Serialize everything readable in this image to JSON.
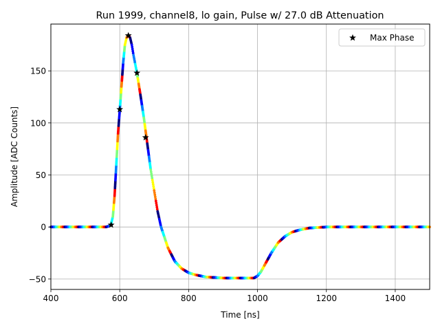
{
  "chart_data": {
    "type": "scatter",
    "title": "Run 1999, channel8, lo gain, Pulse w/ 27.0 dB Attenuation",
    "xlabel": "Time [ns]",
    "ylabel": "Amplitude [ADC Counts]",
    "xlim": [
      400,
      1500
    ],
    "ylim": [
      -60,
      195
    ],
    "xticks": [
      400,
      600,
      800,
      1000,
      1200,
      1400
    ],
    "yticks": [
      -50,
      0,
      50,
      100,
      150
    ],
    "ytick_labels": [
      "−50",
      "0",
      "50",
      "100",
      "150"
    ],
    "grid": true,
    "legend": {
      "placement": "top-right",
      "entries": [
        "Max Phase"
      ]
    },
    "pulse_curve": {
      "x": [
        400,
        560,
        570,
        575,
        580,
        585,
        590,
        595,
        600,
        605,
        610,
        615,
        620,
        625,
        630,
        635,
        640,
        650,
        660,
        670,
        680,
        690,
        700,
        710,
        720,
        740,
        760,
        780,
        800,
        820,
        850,
        900,
        950,
        990,
        1000,
        1010,
        1020,
        1030,
        1040,
        1060,
        1080,
        1100,
        1120,
        1150,
        1200,
        1250,
        1300,
        1400,
        1500
      ],
      "y": [
        0,
        0,
        1,
        3,
        10,
        30,
        60,
        90,
        112,
        135,
        158,
        175,
        182,
        184,
        182,
        175,
        165,
        148,
        127,
        105,
        80,
        55,
        35,
        15,
        0,
        -20,
        -33,
        -40,
        -44,
        -46,
        -48,
        -49,
        -49,
        -49,
        -47,
        -43,
        -37,
        -31,
        -25,
        -15,
        -9,
        -5,
        -3,
        -1,
        0,
        0,
        0,
        0,
        0
      ]
    },
    "max_phase_points": [
      {
        "x": 575,
        "y": 2
      },
      {
        "x": 600,
        "y": 113
      },
      {
        "x": 625,
        "y": 184
      },
      {
        "x": 650,
        "y": 148
      },
      {
        "x": 675,
        "y": 86
      }
    ],
    "colors": {
      "markers": "#000000",
      "grid": "#b0b0b0",
      "colormap": [
        "#00007f",
        "#0000ff",
        "#007fff",
        "#00ffff",
        "#7fff7f",
        "#ffff00",
        "#ff7f00",
        "#ff0000",
        "#7f0000"
      ]
    }
  }
}
